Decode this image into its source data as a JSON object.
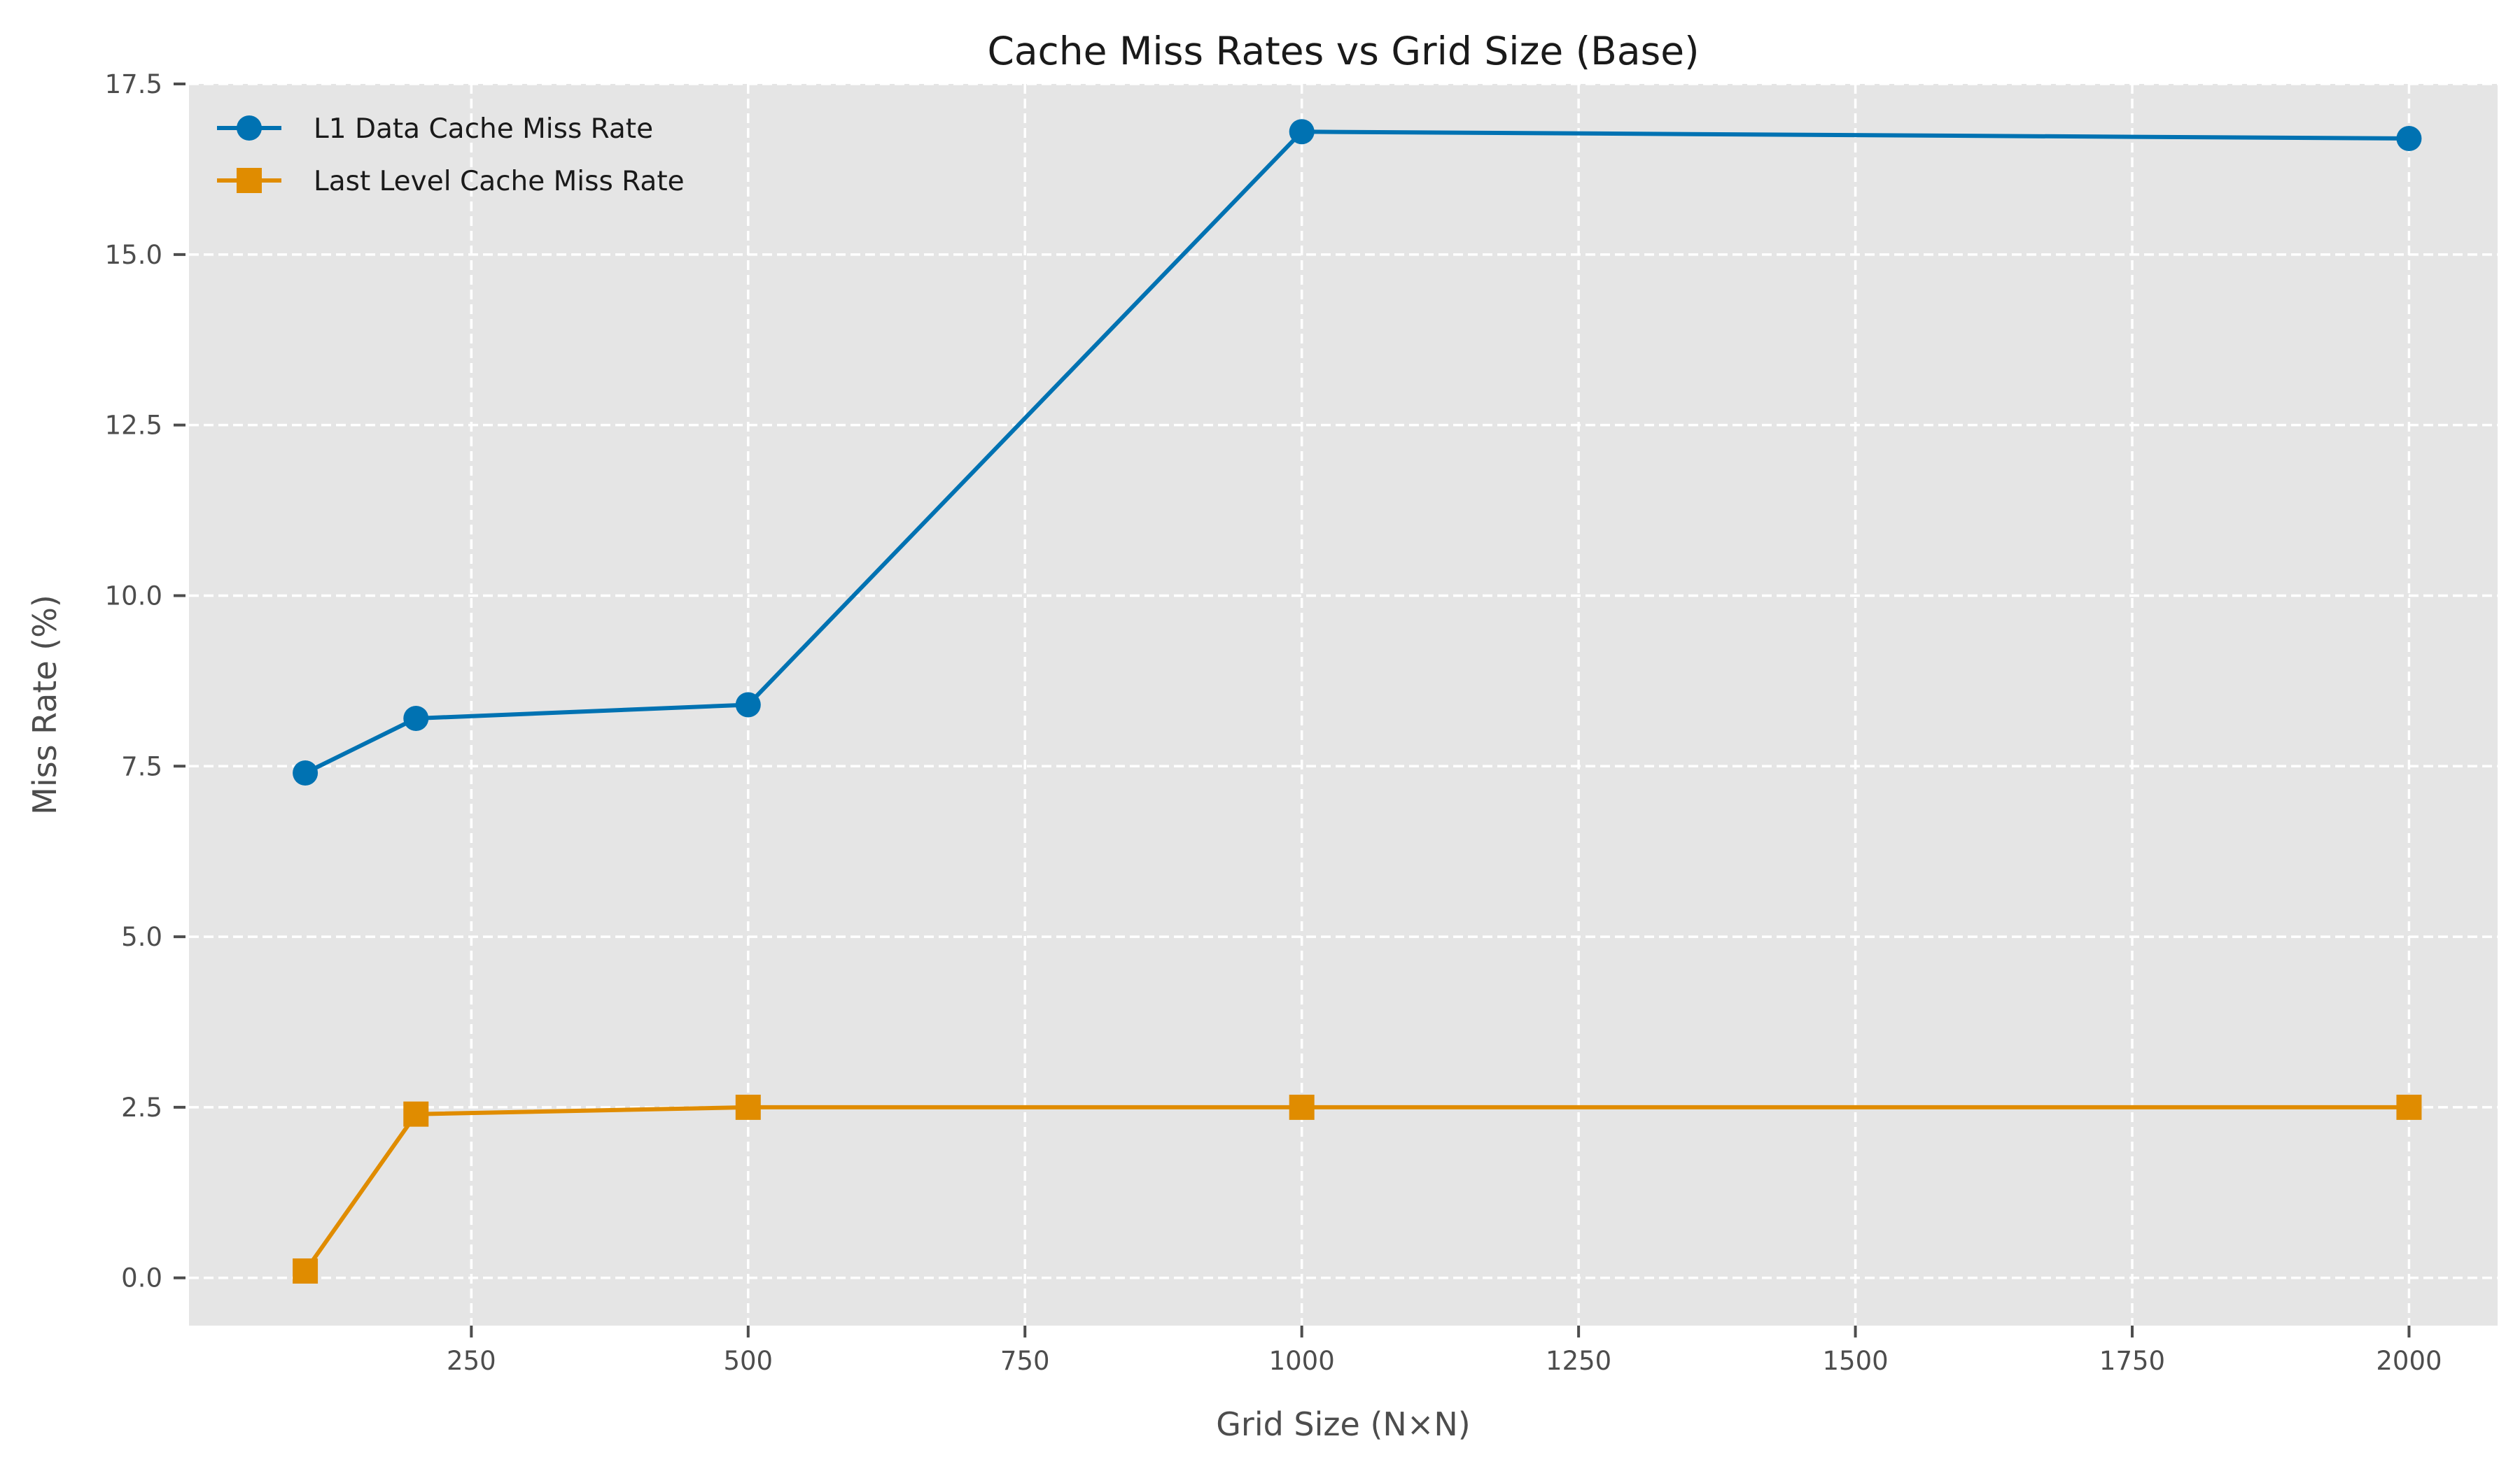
{
  "chart_data": {
    "type": "line",
    "title": "Cache Miss Rates vs Grid Size (Base)",
    "xlabel": "Grid Size (N×N)",
    "ylabel": "Miss Rate (%)",
    "x": [
      100,
      200,
      500,
      1000,
      2000
    ],
    "xlim": [
      -5,
      2080
    ],
    "ylim": [
      -0.7,
      17.5
    ],
    "xticks": [
      250,
      500,
      750,
      1000,
      1250,
      1500,
      1750,
      2000
    ],
    "xtick_labels": [
      "250",
      "500",
      "750",
      "1000",
      "1250",
      "1500",
      "1750",
      "2000"
    ],
    "yticks": [
      0,
      2.5,
      5,
      7.5,
      10,
      12.5,
      15,
      17.5
    ],
    "ytick_labels": [
      "0.0",
      "2.5",
      "5.0",
      "7.5",
      "10.0",
      "12.5",
      "15.0",
      "17.5"
    ],
    "grid": true,
    "legend_position": "top-left",
    "series": [
      {
        "name": "L1 Data Cache Miss Rate",
        "values": [
          7.4,
          8.2,
          8.4,
          16.8,
          16.7
        ],
        "color": "#0072b2",
        "marker": "circle"
      },
      {
        "name": "Last Level Cache Miss Rate",
        "values": [
          0.1,
          2.4,
          2.5,
          2.5,
          2.5
        ],
        "color": "#e08c00",
        "marker": "square"
      }
    ],
    "colors": {
      "plot_background": "#e5e5e5",
      "grid": "#ffffff",
      "axis_text": "#4d4d4d",
      "title_text": "#1a1a1a"
    }
  }
}
